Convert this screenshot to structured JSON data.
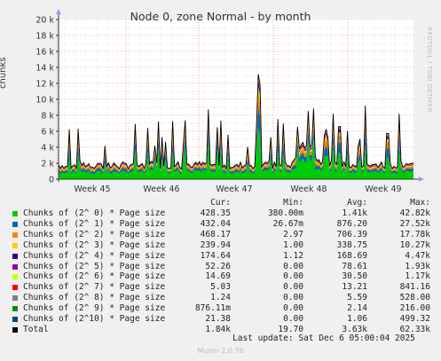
{
  "chart_data": {
    "type": "area",
    "title": "Node 0, zone Normal - by month",
    "ylabel": "chunks",
    "xlabel": "",
    "x_ticks": [
      "Week 45",
      "Week 46",
      "Week 47",
      "Week 48",
      "Week 49"
    ],
    "y_ticks": [
      "0",
      "2 k",
      "4 k",
      "6 k",
      "8 k",
      "10 k",
      "12 k",
      "14 k",
      "16 k",
      "18 k",
      "20 k"
    ],
    "ylim": [
      0,
      20000
    ],
    "grid": true,
    "side_label": "RRDTOOL / TOBI OETIKER",
    "legend_headers": [
      "Cur:",
      "Min:",
      "Avg:",
      "Max:"
    ],
    "series": [
      {
        "name": "Chunks of (2^ 0) * Page size",
        "color": "#00cc00",
        "cur": "428.35",
        "min": "380.00m",
        "avg": "1.41k",
        "max": "42.82k"
      },
      {
        "name": "Chunks of (2^ 1) * Page size",
        "color": "#0066b3",
        "cur": "432.04",
        "min": "26.67m",
        "avg": "876.20",
        "max": "27.52k"
      },
      {
        "name": "Chunks of (2^ 2) * Page size",
        "color": "#ff8000",
        "cur": "468.17",
        "min": "2.97",
        "avg": "706.39",
        "max": "17.78k"
      },
      {
        "name": "Chunks of (2^ 3) * Page size",
        "color": "#ffcc00",
        "cur": "239.94",
        "min": "1.00",
        "avg": "338.75",
        "max": "10.27k"
      },
      {
        "name": "Chunks of (2^ 4) * Page size",
        "color": "#330099",
        "cur": "174.64",
        "min": "1.12",
        "avg": "168.69",
        "max": "4.47k"
      },
      {
        "name": "Chunks of (2^ 5) * Page size",
        "color": "#990099",
        "cur": "52.26",
        "min": "0.00",
        "avg": "78.61",
        "max": "1.93k"
      },
      {
        "name": "Chunks of (2^ 6) * Page size",
        "color": "#ccff00",
        "cur": "14.69",
        "min": "0.00",
        "avg": "30.50",
        "max": "1.17k"
      },
      {
        "name": "Chunks of (2^ 7) * Page size",
        "color": "#ff0000",
        "cur": "5.03",
        "min": "0.00",
        "avg": "13.21",
        "max": "841.16"
      },
      {
        "name": "Chunks of (2^ 8) * Page size",
        "color": "#808080",
        "cur": "1.24",
        "min": "0.00",
        "avg": "5.59",
        "max": "528.00"
      },
      {
        "name": "Chunks of (2^ 9) * Page size",
        "color": "#008f00",
        "cur": "876.11m",
        "min": "0.00",
        "avg": "2.14",
        "max": "216.00"
      },
      {
        "name": "Chunks of (2^10) * Page size",
        "color": "#00487d",
        "cur": "21.38",
        "min": "0.00",
        "avg": "1.06",
        "max": "499.32"
      },
      {
        "name": "Total",
        "color": "#000000",
        "cur": "1.84k",
        "min": "19.70",
        "avg": "3.63k",
        "max": "62.33k"
      }
    ]
  },
  "footer": {
    "last_update": "Last update: Sat Dec  6 05:00:04 2025",
    "version": "Munin 2.0.76"
  }
}
